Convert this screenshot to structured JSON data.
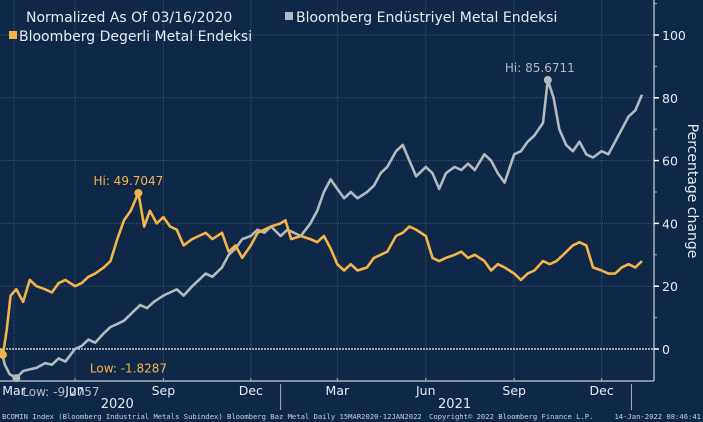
{
  "chart_data": {
    "type": "line",
    "title": "Normalized As Of 03/16/2020",
    "ylabel": "Percentage change",
    "xlabel": "",
    "ylim": [
      -10,
      111
    ],
    "yticks": [
      0,
      20,
      40,
      60,
      80,
      100
    ],
    "ytick_labels": [
      "0",
      "20",
      "40",
      "60",
      "80",
      "100"
    ],
    "grid": true,
    "legend_position": "top-left",
    "x_range": [
      "2020-03-15",
      "2022-01-12"
    ],
    "xticks": [
      {
        "label": "Mar",
        "date": "2020-03-01"
      },
      {
        "label": "Jun",
        "date": "2020-06-01"
      },
      {
        "label": "Sep",
        "date": "2020-09-01"
      },
      {
        "label": "Dec",
        "date": "2020-12-01"
      },
      {
        "label": "Mar",
        "date": "2021-03-01"
      },
      {
        "label": "Jun",
        "date": "2021-06-01"
      },
      {
        "label": "Sep",
        "date": "2021-09-01"
      },
      {
        "label": "Dec",
        "date": "2021-12-01"
      }
    ],
    "year_labels": [
      {
        "label": "2020",
        "date": "2020-07-15"
      },
      {
        "label": "2021",
        "date": "2021-07-01"
      }
    ],
    "series": [
      {
        "name": "Bloomberg Endüstriyel Metal Endeksi",
        "color": "#b4b9bf",
        "points": [
          [
            "2020-03-16",
            0
          ],
          [
            "2020-03-20",
            -5
          ],
          [
            "2020-03-25",
            -8
          ],
          [
            "2020-04-01",
            -9.28
          ],
          [
            "2020-04-08",
            -7
          ],
          [
            "2020-04-15",
            -6.5
          ],
          [
            "2020-04-22",
            -6
          ],
          [
            "2020-05-01",
            -4.5
          ],
          [
            "2020-05-08",
            -5
          ],
          [
            "2020-05-15",
            -3
          ],
          [
            "2020-05-22",
            -4
          ],
          [
            "2020-06-01",
            0
          ],
          [
            "2020-06-08",
            1
          ],
          [
            "2020-06-15",
            3
          ],
          [
            "2020-06-22",
            2
          ],
          [
            "2020-07-01",
            5
          ],
          [
            "2020-07-08",
            7
          ],
          [
            "2020-07-15",
            8
          ],
          [
            "2020-07-22",
            9
          ],
          [
            "2020-08-01",
            12
          ],
          [
            "2020-08-08",
            14
          ],
          [
            "2020-08-15",
            13
          ],
          [
            "2020-08-22",
            15
          ],
          [
            "2020-09-01",
            17
          ],
          [
            "2020-09-08",
            18
          ],
          [
            "2020-09-15",
            19
          ],
          [
            "2020-09-22",
            17
          ],
          [
            "2020-10-01",
            20
          ],
          [
            "2020-10-08",
            22
          ],
          [
            "2020-10-15",
            24
          ],
          [
            "2020-10-22",
            23
          ],
          [
            "2020-11-01",
            26
          ],
          [
            "2020-11-08",
            30
          ],
          [
            "2020-11-15",
            32
          ],
          [
            "2020-11-22",
            35
          ],
          [
            "2020-12-01",
            36
          ],
          [
            "2020-12-08",
            38
          ],
          [
            "2020-12-15",
            37
          ],
          [
            "2020-12-22",
            39
          ],
          [
            "2021-01-01",
            36
          ],
          [
            "2021-01-08",
            38
          ],
          [
            "2021-01-15",
            37
          ],
          [
            "2021-01-22",
            36
          ],
          [
            "2021-02-01",
            40
          ],
          [
            "2021-02-08",
            44
          ],
          [
            "2021-02-15",
            50
          ],
          [
            "2021-02-22",
            54
          ],
          [
            "2021-03-01",
            51
          ],
          [
            "2021-03-08",
            48
          ],
          [
            "2021-03-15",
            50
          ],
          [
            "2021-03-22",
            48
          ],
          [
            "2021-04-01",
            50
          ],
          [
            "2021-04-08",
            52
          ],
          [
            "2021-04-15",
            56
          ],
          [
            "2021-04-22",
            58
          ],
          [
            "2021-05-01",
            63
          ],
          [
            "2021-05-08",
            65
          ],
          [
            "2021-05-15",
            60
          ],
          [
            "2021-05-22",
            55
          ],
          [
            "2021-06-01",
            58
          ],
          [
            "2021-06-08",
            56
          ],
          [
            "2021-06-15",
            51
          ],
          [
            "2021-06-22",
            56
          ],
          [
            "2021-07-01",
            58
          ],
          [
            "2021-07-08",
            57
          ],
          [
            "2021-07-15",
            59
          ],
          [
            "2021-07-22",
            57
          ],
          [
            "2021-08-01",
            62
          ],
          [
            "2021-08-08",
            60
          ],
          [
            "2021-08-15",
            56
          ],
          [
            "2021-08-22",
            53
          ],
          [
            "2021-09-01",
            62
          ],
          [
            "2021-09-08",
            63
          ],
          [
            "2021-09-15",
            66
          ],
          [
            "2021-09-22",
            68
          ],
          [
            "2021-10-01",
            72
          ],
          [
            "2021-10-06",
            85.67
          ],
          [
            "2021-10-12",
            80
          ],
          [
            "2021-10-18",
            70
          ],
          [
            "2021-10-25",
            65
          ],
          [
            "2021-11-01",
            63
          ],
          [
            "2021-11-08",
            66
          ],
          [
            "2021-11-15",
            62
          ],
          [
            "2021-11-22",
            61
          ],
          [
            "2021-12-01",
            63
          ],
          [
            "2021-12-08",
            62
          ],
          [
            "2021-12-15",
            66
          ],
          [
            "2021-12-22",
            70
          ],
          [
            "2021-12-29",
            74
          ],
          [
            "2022-01-05",
            76
          ],
          [
            "2022-01-12",
            81
          ]
        ],
        "annotations": [
          {
            "text": "Hi: 85.6711",
            "date": "2021-10-06",
            "value": 85.67
          },
          {
            "text": "Low: -9.2757",
            "date": "2020-04-01",
            "value": -9.28
          }
        ]
      },
      {
        "name": "Bloomberg Degerli Metal Endeksi",
        "color": "#f5b44a",
        "points": [
          [
            "2020-03-16",
            0
          ],
          [
            "2020-03-18",
            -1.83
          ],
          [
            "2020-03-22",
            6
          ],
          [
            "2020-03-26",
            17
          ],
          [
            "2020-04-01",
            19
          ],
          [
            "2020-04-08",
            15
          ],
          [
            "2020-04-15",
            22
          ],
          [
            "2020-04-22",
            20
          ],
          [
            "2020-05-01",
            19
          ],
          [
            "2020-05-08",
            18
          ],
          [
            "2020-05-15",
            21
          ],
          [
            "2020-05-22",
            22
          ],
          [
            "2020-06-01",
            20
          ],
          [
            "2020-06-08",
            21
          ],
          [
            "2020-06-15",
            23
          ],
          [
            "2020-06-22",
            24
          ],
          [
            "2020-07-01",
            26
          ],
          [
            "2020-07-08",
            28
          ],
          [
            "2020-07-15",
            35
          ],
          [
            "2020-07-22",
            41
          ],
          [
            "2020-07-29",
            44
          ],
          [
            "2020-08-06",
            49.7
          ],
          [
            "2020-08-12",
            39
          ],
          [
            "2020-08-18",
            44
          ],
          [
            "2020-08-25",
            40
          ],
          [
            "2020-09-01",
            42
          ],
          [
            "2020-09-08",
            39
          ],
          [
            "2020-09-15",
            38
          ],
          [
            "2020-09-22",
            33
          ],
          [
            "2020-10-01",
            35
          ],
          [
            "2020-10-08",
            36
          ],
          [
            "2020-10-15",
            37
          ],
          [
            "2020-10-22",
            35
          ],
          [
            "2020-11-01",
            37
          ],
          [
            "2020-11-08",
            31
          ],
          [
            "2020-11-15",
            33
          ],
          [
            "2020-11-22",
            29
          ],
          [
            "2020-12-01",
            33
          ],
          [
            "2020-12-08",
            37
          ],
          [
            "2020-12-15",
            38
          ],
          [
            "2020-12-22",
            39
          ],
          [
            "2021-01-01",
            40
          ],
          [
            "2021-01-06",
            41
          ],
          [
            "2021-01-12",
            35
          ],
          [
            "2021-01-22",
            36
          ],
          [
            "2021-02-01",
            35
          ],
          [
            "2021-02-08",
            34
          ],
          [
            "2021-02-15",
            36
          ],
          [
            "2021-02-22",
            32
          ],
          [
            "2021-03-01",
            27
          ],
          [
            "2021-03-08",
            25
          ],
          [
            "2021-03-15",
            27
          ],
          [
            "2021-03-22",
            25
          ],
          [
            "2021-04-01",
            26
          ],
          [
            "2021-04-08",
            29
          ],
          [
            "2021-04-15",
            30
          ],
          [
            "2021-04-22",
            31
          ],
          [
            "2021-05-01",
            36
          ],
          [
            "2021-05-08",
            37
          ],
          [
            "2021-05-15",
            39
          ],
          [
            "2021-05-22",
            38
          ],
          [
            "2021-06-01",
            36
          ],
          [
            "2021-06-08",
            29
          ],
          [
            "2021-06-15",
            28
          ],
          [
            "2021-06-22",
            29
          ],
          [
            "2021-07-01",
            30
          ],
          [
            "2021-07-08",
            31
          ],
          [
            "2021-07-15",
            29
          ],
          [
            "2021-07-22",
            30
          ],
          [
            "2021-08-01",
            28
          ],
          [
            "2021-08-08",
            25
          ],
          [
            "2021-08-15",
            27
          ],
          [
            "2021-08-22",
            26
          ],
          [
            "2021-09-01",
            24
          ],
          [
            "2021-09-08",
            22
          ],
          [
            "2021-09-15",
            24
          ],
          [
            "2021-09-22",
            25
          ],
          [
            "2021-10-01",
            28
          ],
          [
            "2021-10-08",
            27
          ],
          [
            "2021-10-15",
            28
          ],
          [
            "2021-10-22",
            30
          ],
          [
            "2021-11-01",
            33
          ],
          [
            "2021-11-08",
            34
          ],
          [
            "2021-11-15",
            33
          ],
          [
            "2021-11-22",
            26
          ],
          [
            "2021-12-01",
            25
          ],
          [
            "2021-12-08",
            24
          ],
          [
            "2021-12-15",
            24
          ],
          [
            "2021-12-22",
            26
          ],
          [
            "2021-12-29",
            27
          ],
          [
            "2022-01-05",
            26
          ],
          [
            "2022-01-12",
            28
          ]
        ],
        "annotations": [
          {
            "text": "Hi: 49.7047",
            "date": "2020-08-06",
            "value": 49.7
          },
          {
            "text": "Low: -1.8287",
            "date": "2020-03-18",
            "value": -1.83
          }
        ]
      }
    ]
  },
  "footer": {
    "source": "BCOMIN Index (Bloomberg Industrial Metals Subindex) Bloomberg Baz Metal  Daily 15MAR2020-12JAN2022",
    "copyright": "Copyright© 2022 Bloomberg Finance L.P.",
    "timestamp": "14-Jan-2022 08:46:41"
  },
  "colors": {
    "background": "#0f2847",
    "grid": "#3a5474",
    "axis": "#a8b4c2",
    "text": "#e6ebf1",
    "zero_line": "#d6d0c0"
  }
}
